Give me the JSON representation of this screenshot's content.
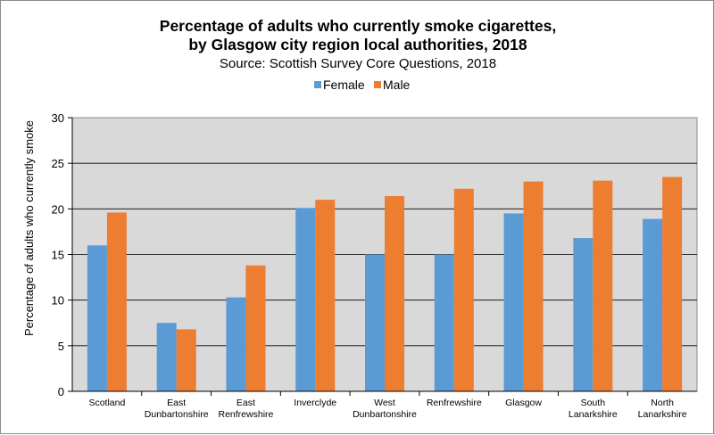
{
  "chart_data": {
    "type": "bar",
    "title": "Percentage of adults who currently smoke cigarettes,",
    "title_line2": "by Glasgow city region local authorities, 2018",
    "subtitle": "Source: Scottish Survey Core Questions, 2018",
    "ylabel": "Percentage of adults who currently  smoke",
    "xlabel": "",
    "ylim": [
      0,
      30
    ],
    "yticks": [
      0,
      5,
      10,
      15,
      20,
      25,
      30
    ],
    "grid": true,
    "legend_position": "top",
    "categories": [
      [
        "Scotland"
      ],
      [
        "East",
        "Dunbartonshire"
      ],
      [
        "East",
        "Renfrewshire"
      ],
      [
        "Inverclyde"
      ],
      [
        "West",
        "Dunbartonshire"
      ],
      [
        "Renfrewshire"
      ],
      [
        "Glasgow"
      ],
      [
        "South",
        "Lanarkshire"
      ],
      [
        "North",
        "Lanarkshire"
      ]
    ],
    "series": [
      {
        "name": "Female",
        "color": "#5b9bd5",
        "values": [
          16.0,
          7.5,
          10.3,
          20.1,
          15.0,
          15.0,
          19.5,
          16.8,
          18.9
        ]
      },
      {
        "name": "Male",
        "color": "#ed7d31",
        "values": [
          19.6,
          6.8,
          13.8,
          21.0,
          21.4,
          22.2,
          23.0,
          23.1,
          23.5
        ]
      }
    ],
    "colors": {
      "plot_background": "#d9d9d9",
      "gridline": "#000000"
    }
  }
}
